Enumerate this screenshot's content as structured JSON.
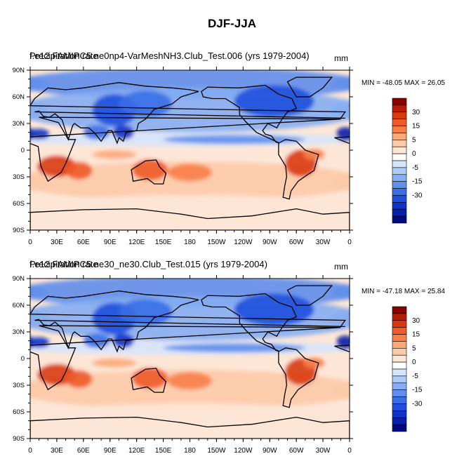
{
  "figure": {
    "title": "DJF-JJA"
  },
  "panels": [
    {
      "title_overlap": "Precipitation rate",
      "title": "f.e12.FAMIPC5.ne0np4-VarMeshNH3.Club_Test.006 (yrs 1979-2004)",
      "units": "mm",
      "min_label": "MIN = -48.05",
      "max_label": "MAX =  26.05"
    },
    {
      "title_overlap": "Precipitation rate",
      "title": "f.e12.FAMIPC5.ne30_ne30.Club_Test.015 (yrs 1979-2004)",
      "units": "mm",
      "min_label": "MIN = -47.18",
      "max_label": "MAX =  25.84"
    }
  ],
  "chart_data": [
    {
      "type": "heatmap",
      "title": "f.e12.FAMIPC5.ne0np4-VarMeshNH3.Club_Test.006 (yrs 1979-2004)",
      "units": "mm",
      "min": -48.05,
      "max": 26.05,
      "x_ticks": [
        "0",
        "30E",
        "60E",
        "90E",
        "120E",
        "150E",
        "180",
        "150W",
        "120W",
        "90W",
        "60W",
        "30W",
        "0"
      ],
      "y_ticks": [
        "90N",
        "60N",
        "30N",
        "0",
        "30S",
        "60S",
        "90S"
      ],
      "xlim": [
        0,
        360
      ],
      "ylim": [
        -90,
        90
      ],
      "colorbar_labels": [
        "30",
        "15",
        "5",
        "0",
        "-5",
        "-15",
        "-30"
      ],
      "colorbar_colors": [
        "#8b0000",
        "#b61c08",
        "#d93a10",
        "#ee5a28",
        "#f88048",
        "#fba878",
        "#fdcaa8",
        "#fde6d6",
        "#ffffff",
        "#d6e4fb",
        "#aecbf8",
        "#86aef2",
        "#5f8eec",
        "#3a6ee6",
        "#1f4fdc",
        "#1233c8",
        "#0a1ea8",
        "#000a80"
      ]
    },
    {
      "type": "heatmap",
      "title": "f.e12.FAMIPC5.ne30_ne30.Club_Test.015 (yrs 1979-2004)",
      "units": "mm",
      "min": -47.18,
      "max": 25.84,
      "x_ticks": [
        "0",
        "30E",
        "60E",
        "90E",
        "120E",
        "150E",
        "180",
        "150W",
        "120W",
        "90W",
        "60W",
        "30W",
        "0"
      ],
      "y_ticks": [
        "90N",
        "60N",
        "30N",
        "0",
        "30S",
        "60S",
        "90S"
      ],
      "xlim": [
        0,
        360
      ],
      "ylim": [
        -90,
        90
      ],
      "colorbar_labels": [
        "30",
        "15",
        "5",
        "0",
        "-5",
        "-15",
        "-30"
      ],
      "colorbar_colors": [
        "#8b0000",
        "#b61c08",
        "#d93a10",
        "#ee5a28",
        "#f88048",
        "#fba878",
        "#fdcaa8",
        "#fde6d6",
        "#ffffff",
        "#d6e4fb",
        "#aecbf8",
        "#86aef2",
        "#5f8eec",
        "#3a6ee6",
        "#1f4fdc",
        "#1233c8",
        "#0a1ea8",
        "#000a80"
      ]
    }
  ]
}
